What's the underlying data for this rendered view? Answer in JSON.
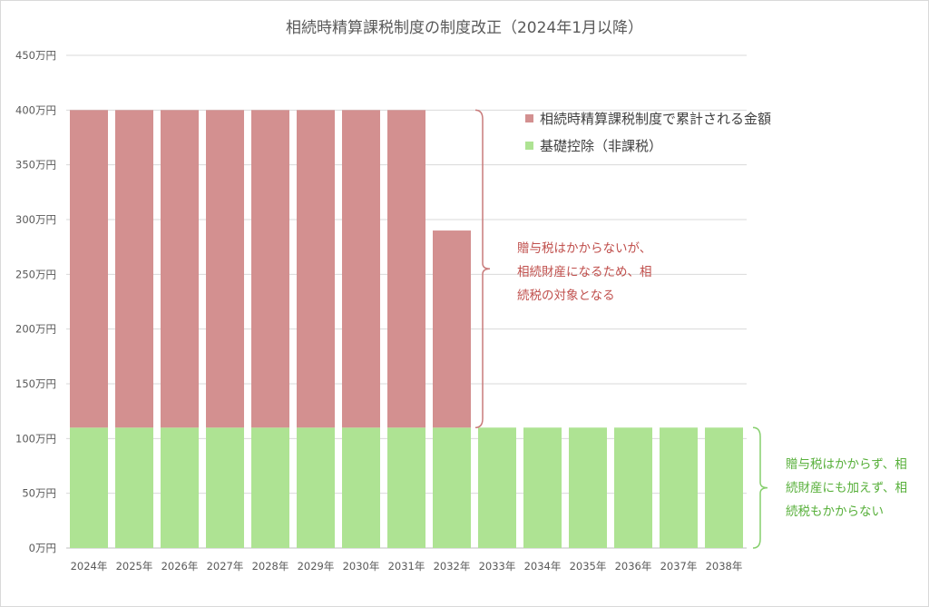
{
  "chart_data": {
    "type": "bar",
    "stacked": true,
    "title": "相続時精算課税制度の制度改正（2024年1月以降）",
    "categories": [
      "2024年",
      "2025年",
      "2026年",
      "2027年",
      "2028年",
      "2029年",
      "2030年",
      "2031年",
      "2032年",
      "2033年",
      "2034年",
      "2035年",
      "2036年",
      "2037年",
      "2038年"
    ],
    "series": [
      {
        "name": "基礎控除（非課税）",
        "color": "#aee393",
        "values": [
          110,
          110,
          110,
          110,
          110,
          110,
          110,
          110,
          110,
          110,
          110,
          110,
          110,
          110,
          110
        ]
      },
      {
        "name": "相続時精算課税制度で累計される金額",
        "color": "#d39090",
        "values": [
          290,
          290,
          290,
          290,
          290,
          290,
          290,
          290,
          180,
          0,
          0,
          0,
          0,
          0,
          0
        ]
      }
    ],
    "ylim": [
      0,
      450
    ],
    "yticks": [
      "0万円",
      "50万円",
      "100万円",
      "150万円",
      "200万円",
      "250万円",
      "300万円",
      "350万円",
      "400万円",
      "450万円"
    ],
    "grid": true,
    "legend_position": "right",
    "annotations": [
      {
        "lines": [
          "贈与税はかからないが、",
          "相続財産になるため、相",
          "続税の対象となる"
        ],
        "color": "#c0504d"
      },
      {
        "lines": [
          "贈与税はかからず、相",
          "続財産にも加えず、相",
          "続税もかからない"
        ],
        "color": "#58b03b"
      }
    ]
  }
}
